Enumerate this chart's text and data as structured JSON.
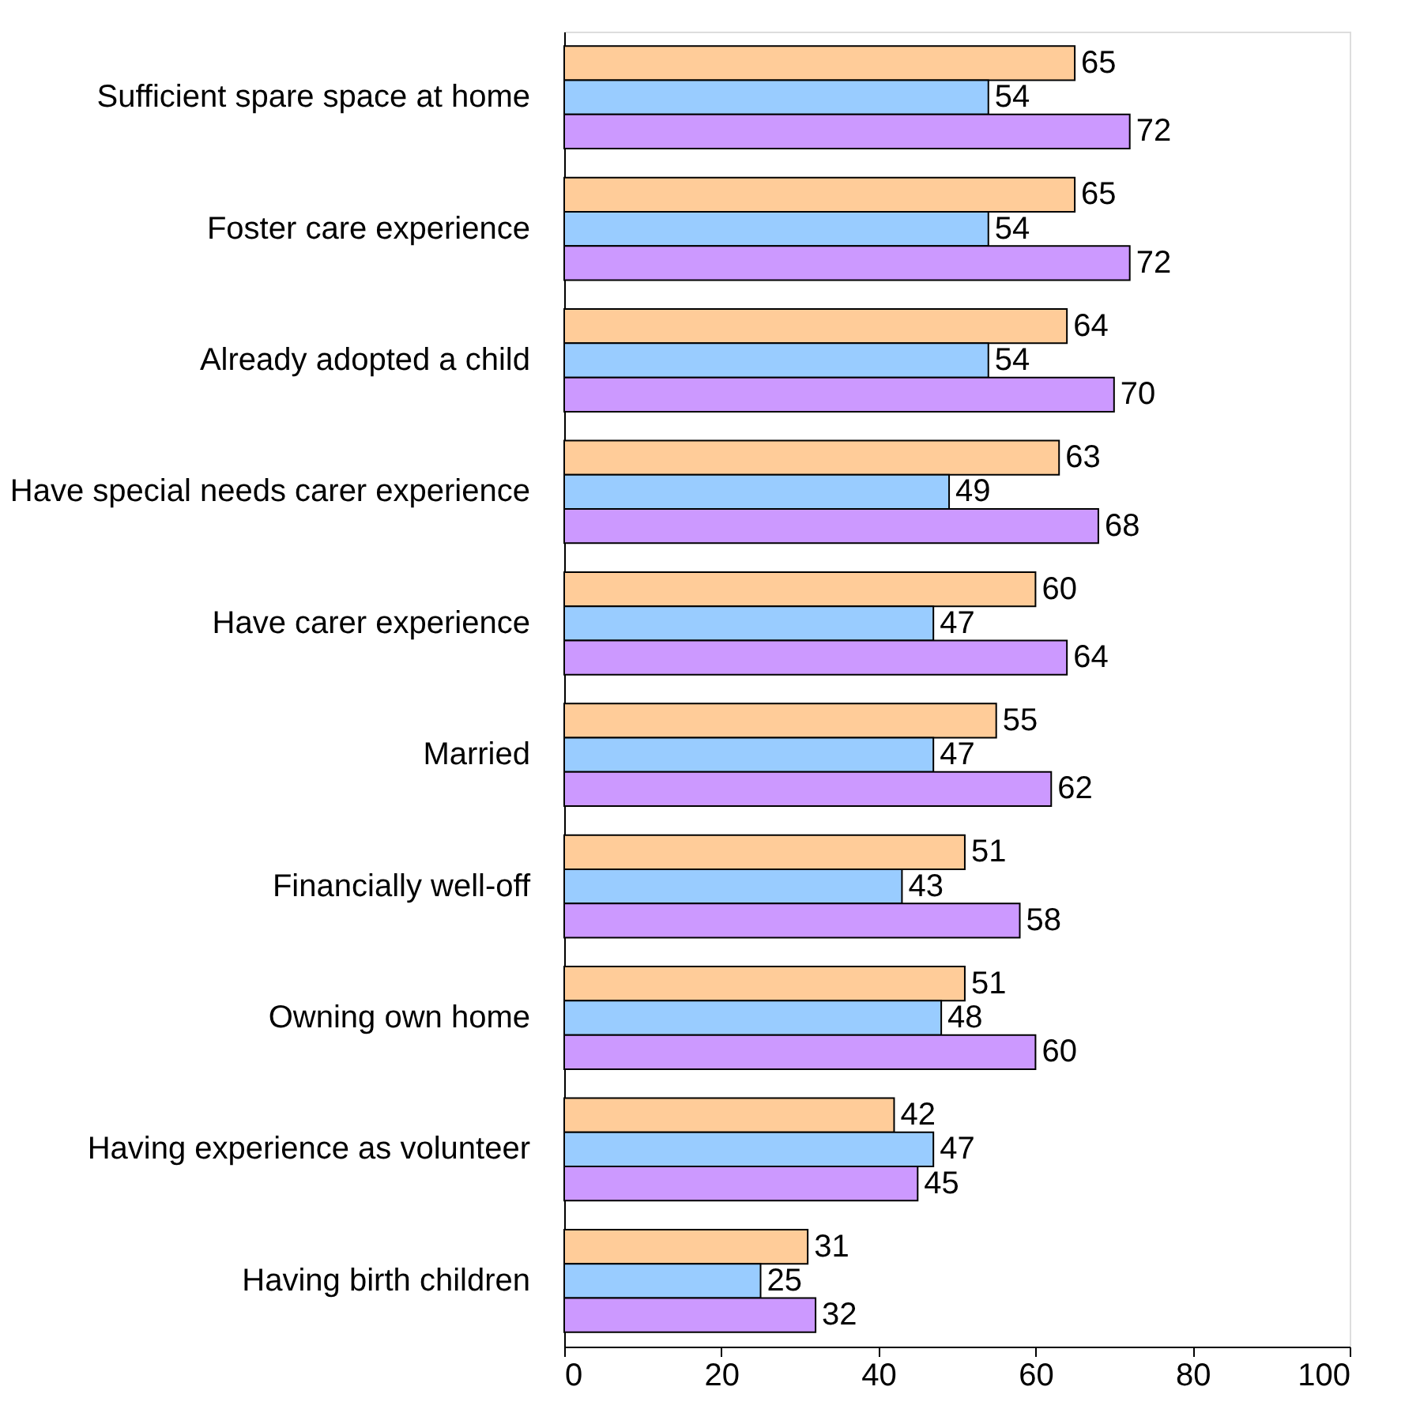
{
  "chart_data": {
    "type": "bar",
    "orientation": "horizontal",
    "categories": [
      "Sufficient spare space at home",
      "Foster care experience",
      "Already adopted a child",
      "Have special needs carer experience",
      "Have carer experience",
      "Married",
      "Financially well-off",
      "Owning own home",
      "Having experience as volunteer",
      "Having birth children"
    ],
    "series": [
      {
        "color": "#ffcc99",
        "values": [
          65,
          65,
          64,
          63,
          60,
          55,
          51,
          51,
          42,
          31
        ]
      },
      {
        "color": "#99ccff",
        "values": [
          54,
          54,
          54,
          49,
          47,
          47,
          43,
          48,
          47,
          25
        ]
      },
      {
        "color": "#cc99ff",
        "values": [
          72,
          72,
          70,
          68,
          64,
          62,
          58,
          60,
          45,
          32
        ]
      }
    ],
    "xlim": [
      0,
      100
    ],
    "xticks": [
      0,
      20,
      40,
      60,
      80,
      100
    ],
    "data_labels": true,
    "grid": false,
    "legend": false
  }
}
